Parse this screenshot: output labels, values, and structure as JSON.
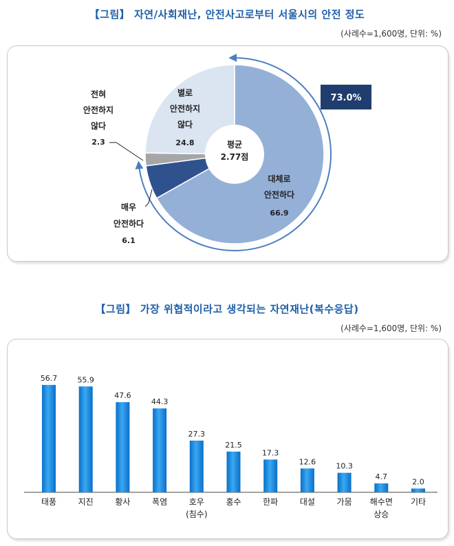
{
  "figure1": {
    "title": "【그림】 자연/사회재난, 안전사고로부터 서울시의 안전 정도",
    "note": "(사례수=1,600명, 단위: %)",
    "center_label": [
      "평균",
      "2.77점"
    ],
    "highlight": "73.0%",
    "labels": {
      "very_unsafe": [
        "전혀",
        "안전하지",
        "않다",
        "2.3"
      ],
      "somewhat_unsafe": [
        "별로",
        "안전하지",
        "않다",
        "24.8"
      ],
      "somewhat_safe": [
        "대체로",
        "안전하다",
        "66.9"
      ],
      "very_safe": [
        "매우",
        "안전하다",
        "6.1"
      ]
    }
  },
  "figure2": {
    "title": "【그림】 가장 위협적이라고 생각되는 자연재난(복수응답)",
    "note": "(사례수=1,600명, 단위: %)"
  },
  "chart_data": [
    {
      "type": "pie",
      "variant": "donut",
      "title": "【그림】 자연/사회재난, 안전사고로부터 서울시의 안전 정도",
      "unit": "%",
      "categories": [
        "대체로 안전하다",
        "매우 안전하다",
        "전혀 안전하지 않다",
        "별로 안전하지 않다"
      ],
      "values": [
        66.9,
        6.1,
        2.3,
        24.8
      ],
      "colors": [
        "#94b0d6",
        "#2f528f",
        "#a6a6a6",
        "#dbe4f1"
      ],
      "annotation": "73.0%",
      "center_text": "평균 2.77점"
    },
    {
      "type": "bar",
      "title": "【그림】 가장 위협적이라고 생각되는 자연재난(복수응답)",
      "unit": "%",
      "categories": [
        [
          "태풍"
        ],
        [
          "지진"
        ],
        [
          "황사"
        ],
        [
          "폭염"
        ],
        [
          "호우",
          "(침수)"
        ],
        [
          "홍수"
        ],
        [
          "한파"
        ],
        [
          "대설"
        ],
        [
          "가뭄"
        ],
        [
          "해수면",
          "상승"
        ],
        [
          "기타"
        ]
      ],
      "values": [
        56.7,
        55.9,
        47.6,
        44.3,
        27.3,
        21.5,
        17.3,
        12.6,
        10.3,
        4.7,
        2.0
      ],
      "ylim": [
        0,
        60
      ],
      "grid": false,
      "bar_color": "#1f8ee0"
    }
  ]
}
